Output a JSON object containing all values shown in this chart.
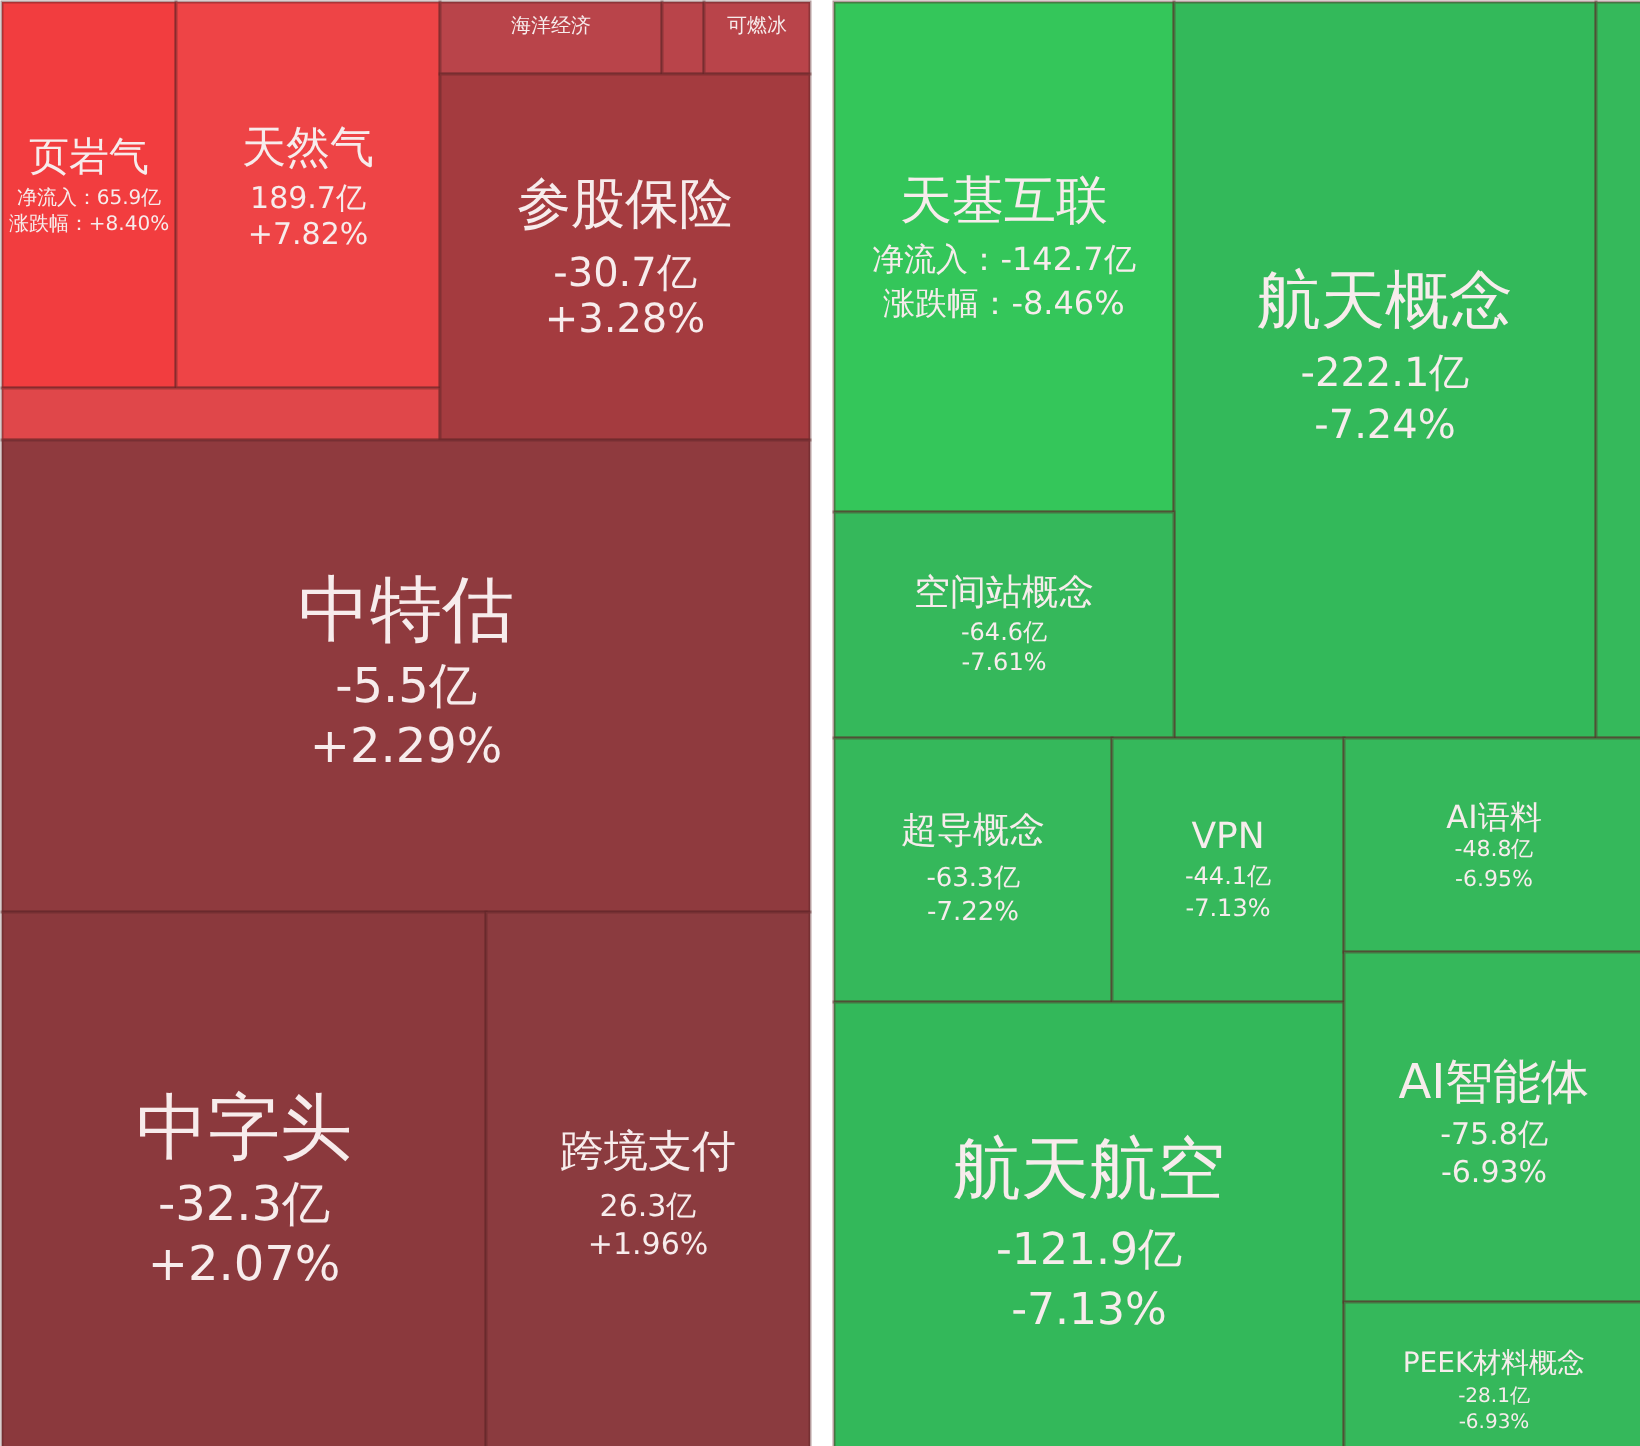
{
  "chart_data": [
    {
      "type": "other",
      "categories": [
        "页岩气",
        "天然气",
        null,
        "海洋经济",
        null,
        "可燃冰",
        "参股保险",
        "中特估",
        "中字头",
        "跨境支付"
      ],
      "series": [
        {
          "colors": [
            "#f23d3f",
            "#ee4446",
            "#e0474a",
            "#b9444a",
            "#b9444a",
            "#b9444a",
            "#a43b3f",
            "#8f3a3e",
            "#8b393d",
            "#8b3b3f"
          ],
          "values": [
            65.9,
            189.7,
            null,
            null,
            null,
            null,
            -30.7,
            -5.5,
            -32.3,
            26.3
          ],
          "value_labels": [
            "净流入：65.9亿",
            "189.7亿",
            null,
            null,
            null,
            null,
            "-30.7亿",
            "-5.5亿",
            "-32.3亿",
            "26.3亿"
          ]
        },
        {
          "values": [
            8.4,
            7.82,
            null,
            null,
            null,
            null,
            3.28,
            2.29,
            2.07,
            1.96
          ],
          "value_labels": [
            "涨跌幅：+8.40%",
            "+7.82%",
            null,
            null,
            null,
            null,
            "+3.28%",
            "+2.29%",
            "+2.07%",
            "+1.96%"
          ]
        }
      ]
    },
    {
      "type": "other",
      "categories": [
        "天基互联",
        "航天概念",
        null,
        "空间站概念",
        "超导概念",
        "VPN",
        "AI语料",
        "航天航空",
        "AI智能体",
        "PEEK材料概念"
      ],
      "series": [
        {
          "colors": [
            "#34c65a",
            "#33b95a",
            "#35b95b",
            "#35b85b",
            "#35b85b",
            "#35b85b",
            "#35b85b",
            "#33b85a",
            "#35b85b",
            "#35b85b"
          ],
          "values": [
            -142.7,
            -222.1,
            null,
            -64.6,
            -63.3,
            -44.1,
            -48.8,
            -121.9,
            -75.8,
            -28.1
          ],
          "value_labels": [
            "净流入：-142.7亿",
            "-222.1亿",
            null,
            "-64.6亿",
            "-63.3亿",
            "-44.1亿",
            "-48.8亿",
            "-121.9亿",
            "-75.8亿",
            "-28.1亿"
          ]
        },
        {
          "values": [
            -8.46,
            -7.24,
            null,
            -7.61,
            -7.22,
            -7.13,
            -6.95,
            -7.13,
            -6.93,
            -6.93
          ],
          "value_labels": [
            "涨跌幅：-8.46%",
            "-7.24%",
            null,
            "-7.61%",
            "-7.22%",
            "-7.13%",
            "-6.95%",
            "-7.13%",
            "-6.93%",
            "-6.93%"
          ]
        }
      ]
    }
  ]
}
